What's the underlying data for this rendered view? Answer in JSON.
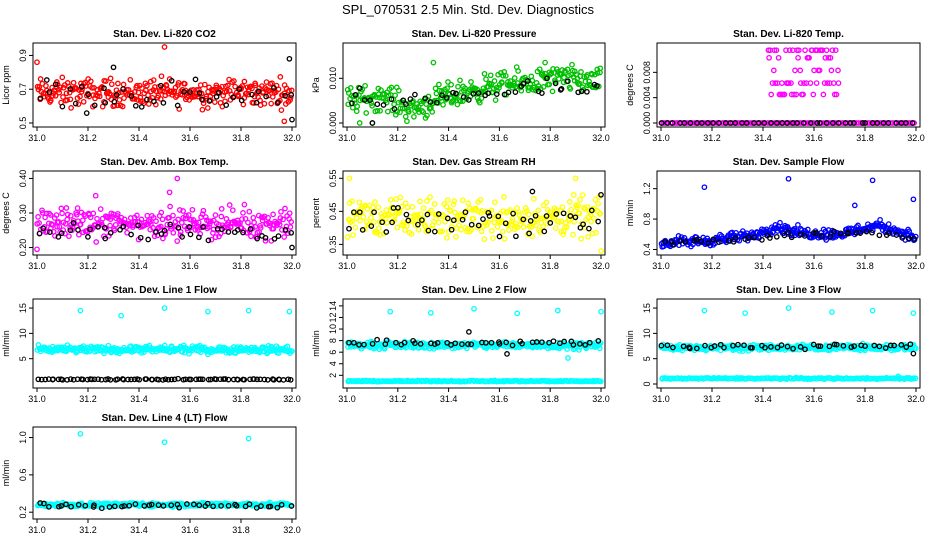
{
  "page_title": "SPL_070531  2.5 Min. Std. Dev. Diagnostics",
  "colors": {
    "black": "#000000",
    "red": "#ff0000",
    "green": "#00c000",
    "magenta": "#ff00ff",
    "yellow": "#ffff00",
    "blue": "#0000ff",
    "cyan": "#00ffff"
  },
  "chart_data": [
    {
      "type": "scatter",
      "title": "Stan. Dev. Li-820 CO2",
      "ylabel": "Licor ppm",
      "xlim": [
        31.0,
        32.0
      ],
      "ylim": [
        0.5,
        0.95
      ],
      "xticks": [
        "31.0",
        "31.2",
        "31.4",
        "31.6",
        "31.8",
        "32.0"
      ],
      "yticks": [
        "0.5",
        "0.7",
        "0.9"
      ],
      "series": [
        {
          "color": "#ff0000",
          "pattern": "noise",
          "count": 300,
          "base": 0.68,
          "noise": 0.07,
          "outliers": [
            [
              31.5,
              0.95
            ],
            [
              31.0,
              0.86
            ],
            [
              31.97,
              0.51
            ]
          ]
        },
        {
          "color": "#000000",
          "pattern": "noise",
          "count": 45,
          "base": 0.67,
          "noise": 0.08,
          "outliers": [
            [
              31.3,
              0.83
            ],
            [
              31.99,
              0.88
            ],
            [
              32.0,
              0.52
            ]
          ]
        }
      ]
    },
    {
      "type": "scatter",
      "title": "Stan. Dev. Li-820 Pressure",
      "ylabel": "kPa",
      "xlim": [
        31.0,
        32.0
      ],
      "ylim": [
        0.0,
        0.017
      ],
      "xticks": [
        "31.0",
        "31.2",
        "31.4",
        "31.6",
        "31.8",
        "32.0"
      ],
      "yticks": [
        "0.000",
        "0.010"
      ],
      "series": [
        {
          "color": "#00c000",
          "pattern": "trend",
          "count": 300,
          "trend": [
            [
              31.0,
              0.005
            ],
            [
              31.15,
              0.006
            ],
            [
              31.25,
              0.003
            ],
            [
              31.4,
              0.006
            ],
            [
              31.55,
              0.008
            ],
            [
              31.7,
              0.009
            ],
            [
              31.85,
              0.01
            ],
            [
              32.0,
              0.009
            ]
          ],
          "noise": 0.0025,
          "outliers": [
            [
              31.34,
              0.0135
            ],
            [
              31.78,
              0.0135
            ],
            [
              31.05,
              0.0
            ],
            [
              31.1,
              0.0
            ]
          ]
        },
        {
          "color": "#000000",
          "pattern": "trend",
          "count": 45,
          "trend": [
            [
              31.0,
              0.006
            ],
            [
              31.2,
              0.004
            ],
            [
              31.4,
              0.006
            ],
            [
              31.6,
              0.007
            ],
            [
              31.8,
              0.008
            ],
            [
              32.0,
              0.007
            ]
          ],
          "noise": 0.0018,
          "outliers": [
            [
              31.1,
              0.0
            ]
          ]
        }
      ]
    },
    {
      "type": "scatter",
      "title": "Stan. Dev. Li-820 Temp.",
      "ylabel": "degrees C",
      "xlim": [
        31.0,
        32.0
      ],
      "ylim": [
        0.0,
        0.012
      ],
      "xticks": [
        "31.0",
        "31.2",
        "31.4",
        "31.6",
        "31.8",
        "32.0"
      ],
      "yticks": [
        "0.000",
        "0.004",
        "0.008"
      ],
      "series": [
        {
          "color": "#ff00ff",
          "pattern": "levels",
          "count": 140,
          "xrange": [
            31.0,
            32.0
          ],
          "levels": [
            0.0
          ]
        },
        {
          "color": "#ff00ff",
          "pattern": "levels",
          "count": 70,
          "xrange": [
            31.42,
            31.7
          ],
          "levels": [
            0.0045,
            0.0063,
            0.0083,
            0.0103,
            0.0115
          ]
        },
        {
          "color": "#000000",
          "pattern": "levels",
          "count": 45,
          "xrange": [
            31.0,
            32.0
          ],
          "levels": [
            0.0
          ]
        }
      ]
    },
    {
      "type": "scatter",
      "title": "Stan. Dev. Amb. Box Temp.",
      "ylabel": "degrees C",
      "xlim": [
        31.0,
        32.0
      ],
      "ylim": [
        0.19,
        0.41
      ],
      "xticks": [
        "31.0",
        "31.2",
        "31.4",
        "31.6",
        "31.8",
        "32.0"
      ],
      "yticks": [
        "0.20",
        "0.30",
        "0.40"
      ],
      "series": [
        {
          "color": "#ff00ff",
          "pattern": "noise",
          "count": 300,
          "base": 0.27,
          "noise": 0.035,
          "outliers": [
            [
              31.55,
              0.4
            ],
            [
              31.23,
              0.35
            ],
            [
              31.52,
              0.36
            ],
            [
              31.0,
              0.195
            ]
          ]
        },
        {
          "color": "#000000",
          "pattern": "noise",
          "count": 45,
          "base": 0.245,
          "noise": 0.025,
          "outliers": [
            [
              32.0,
              0.2
            ]
          ]
        }
      ]
    },
    {
      "type": "scatter",
      "title": "Stan. Dev. Gas Stream RH",
      "ylabel": "percent",
      "xlim": [
        31.0,
        32.0
      ],
      "ylim": [
        0.33,
        0.56
      ],
      "xticks": [
        "31.0",
        "31.2",
        "31.4",
        "31.6",
        "31.8",
        "32.0"
      ],
      "yticks": [
        "0.35",
        "0.45",
        "0.55"
      ],
      "series": [
        {
          "color": "#ffff00",
          "pattern": "noise",
          "count": 300,
          "base": 0.43,
          "noise": 0.05,
          "outliers": [
            [
              31.01,
              0.55
            ],
            [
              31.9,
              0.55
            ],
            [
              32.0,
              0.33
            ]
          ]
        },
        {
          "color": "#000000",
          "pattern": "noise",
          "count": 50,
          "base": 0.425,
          "noise": 0.04,
          "outliers": [
            [
              31.73,
              0.51
            ],
            [
              32.0,
              0.5
            ]
          ]
        }
      ]
    },
    {
      "type": "scatter",
      "title": "Stan. Dev. Sample Flow",
      "ylabel": "ml/min",
      "xlim": [
        31.0,
        32.0
      ],
      "ylim": [
        0.38,
        1.38
      ],
      "xticks": [
        "31.0",
        "31.2",
        "31.4",
        "31.6",
        "31.8",
        "32.0"
      ],
      "yticks": [
        "0.4",
        "0.8",
        "1.2"
      ],
      "series": [
        {
          "color": "#0000ff",
          "pattern": "trend",
          "count": 300,
          "trend": [
            [
              31.0,
              0.48
            ],
            [
              31.2,
              0.52
            ],
            [
              31.35,
              0.58
            ],
            [
              31.45,
              0.7
            ],
            [
              31.55,
              0.62
            ],
            [
              31.7,
              0.6
            ],
            [
              31.85,
              0.72
            ],
            [
              31.95,
              0.62
            ],
            [
              32.0,
              0.55
            ]
          ],
          "noise": 0.06,
          "outliers": [
            [
              31.17,
              1.22
            ],
            [
              31.5,
              1.33
            ],
            [
              31.83,
              1.31
            ],
            [
              31.99,
              1.06
            ],
            [
              31.76,
              0.98
            ]
          ]
        },
        {
          "color": "#000000",
          "pattern": "trend",
          "count": 45,
          "trend": [
            [
              31.0,
              0.48
            ],
            [
              31.2,
              0.5
            ],
            [
              31.4,
              0.56
            ],
            [
              31.6,
              0.6
            ],
            [
              31.8,
              0.62
            ],
            [
              32.0,
              0.55
            ]
          ],
          "noise": 0.04,
          "outliers": []
        }
      ]
    },
    {
      "type": "scatter",
      "title": "Stan. Dev. Line 1 Flow",
      "ylabel": "ml/min",
      "xlim": [
        31.0,
        32.0
      ],
      "ylim": [
        0.0,
        16.0
      ],
      "xticks": [
        "31.0",
        "31.2",
        "31.4",
        "31.6",
        "31.8",
        "32.0"
      ],
      "yticks": [
        "5",
        "10",
        "15"
      ],
      "series": [
        {
          "color": "#00ffff",
          "pattern": "noise",
          "count": 320,
          "base": 6.8,
          "noise": 0.6,
          "outliers": [
            [
              31.17,
              14.5
            ],
            [
              31.33,
              13.5
            ],
            [
              31.5,
              15.0
            ],
            [
              31.67,
              14.3
            ],
            [
              31.83,
              14.5
            ],
            [
              31.99,
              14.3
            ]
          ]
        },
        {
          "color": "#000000",
          "pattern": "noise",
          "count": 80,
          "base": 0.9,
          "noise": 0.1,
          "outliers": []
        }
      ]
    },
    {
      "type": "scatter",
      "title": "Stan. Dev. Line 2 Flow",
      "ylabel": "ml/min",
      "xlim": [
        31.0,
        32.0
      ],
      "ylim": [
        0.5,
        14.5
      ],
      "xticks": [
        "31.0",
        "31.2",
        "31.4",
        "31.6",
        "31.8",
        "32.0"
      ],
      "yticks": [
        "2",
        "4",
        "6",
        "8",
        "10",
        "12",
        "14"
      ],
      "series": [
        {
          "color": "#00ffff",
          "pattern": "noise",
          "count": 320,
          "base": 7.2,
          "noise": 0.5,
          "outliers": [
            [
              31.17,
              13.0
            ],
            [
              31.33,
              12.8
            ],
            [
              31.5,
              13.5
            ],
            [
              31.67,
              12.7
            ],
            [
              31.83,
              13.2
            ],
            [
              32.0,
              13.0
            ],
            [
              31.87,
              5.0
            ]
          ]
        },
        {
          "color": "#00ffff",
          "pattern": "noise",
          "count": 200,
          "base": 1.0,
          "noise": 0.08,
          "outliers": []
        },
        {
          "color": "#000000",
          "pattern": "noise",
          "count": 45,
          "base": 7.6,
          "noise": 0.5,
          "outliers": [
            [
              31.48,
              9.5
            ],
            [
              31.63,
              5.7
            ]
          ]
        }
      ]
    },
    {
      "type": "scatter",
      "title": "Stan. Dev. Line 3 Flow",
      "ylabel": "ml/min",
      "xlim": [
        31.0,
        32.0
      ],
      "ylim": [
        0.0,
        16.0
      ],
      "xticks": [
        "31.0",
        "31.2",
        "31.4",
        "31.6",
        "31.8",
        "32.0"
      ],
      "yticks": [
        "0",
        "5",
        "10",
        "15"
      ],
      "series": [
        {
          "color": "#00ffff",
          "pattern": "noise",
          "count": 320,
          "base": 7.2,
          "noise": 0.5,
          "outliers": [
            [
              31.17,
              14.5
            ],
            [
              31.33,
              14.0
            ],
            [
              31.5,
              15.0
            ],
            [
              31.67,
              14.2
            ],
            [
              31.83,
              14.5
            ],
            [
              31.99,
              14.0
            ],
            [
              31.93,
              1.5
            ]
          ]
        },
        {
          "color": "#00ffff",
          "pattern": "noise",
          "count": 200,
          "base": 1.1,
          "noise": 0.12,
          "outliers": []
        },
        {
          "color": "#000000",
          "pattern": "noise",
          "count": 45,
          "base": 7.4,
          "noise": 0.4,
          "outliers": [
            [
              31.99,
              6.0
            ]
          ]
        }
      ]
    },
    {
      "type": "scatter",
      "title": "Stan. Dev. Line 4 (LT) Flow",
      "ylabel": "ml/min",
      "xlim": [
        31.0,
        32.0
      ],
      "ylim": [
        0.17,
        1.07
      ],
      "xticks": [
        "31.0",
        "31.2",
        "31.4",
        "31.6",
        "31.8",
        "32.0"
      ],
      "yticks": [
        "0.2",
        "0.6",
        "1.0"
      ],
      "series": [
        {
          "color": "#00ffff",
          "pattern": "noise",
          "count": 320,
          "base": 0.28,
          "noise": 0.018,
          "outliers": [
            [
              31.17,
              1.04
            ],
            [
              31.5,
              0.95
            ],
            [
              31.83,
              0.99
            ]
          ]
        },
        {
          "color": "#000000",
          "pattern": "noise",
          "count": 45,
          "base": 0.27,
          "noise": 0.02,
          "outliers": []
        }
      ]
    }
  ]
}
